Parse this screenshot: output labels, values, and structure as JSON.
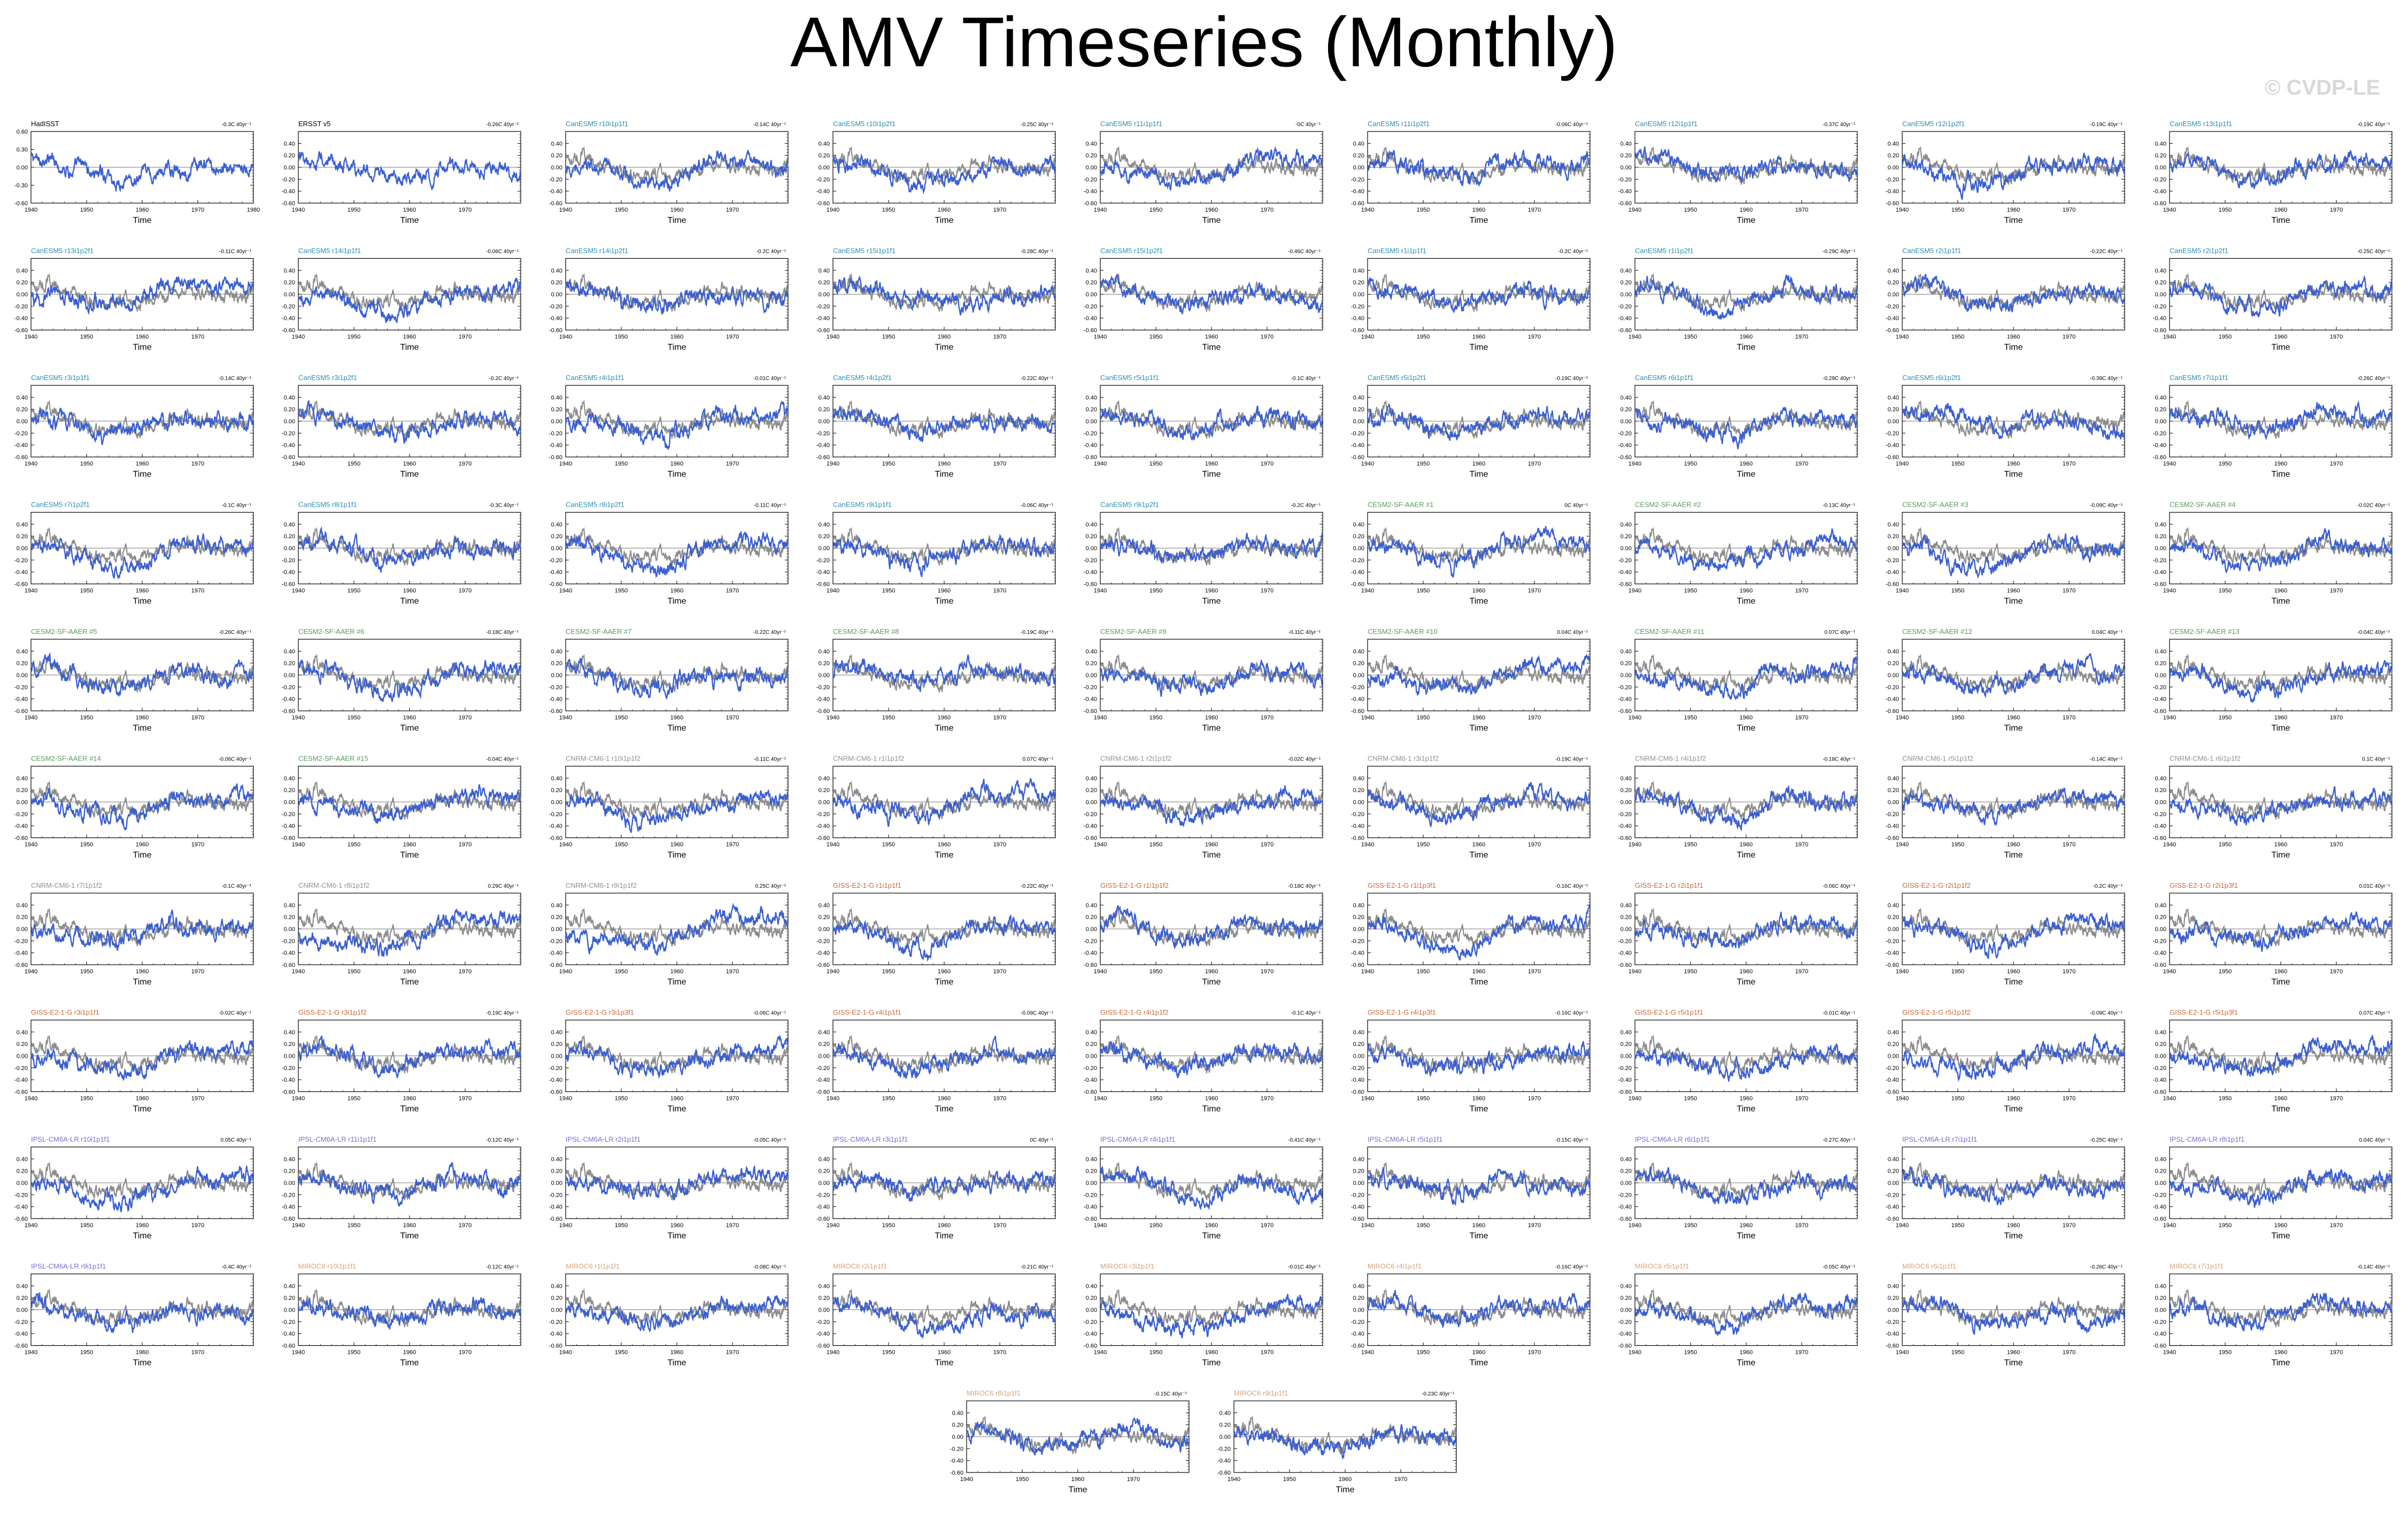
{
  "title": "AMV Timeseries (Monthly)",
  "watermark": "© CVDP-LE",
  "colors": {
    "observed": "#8c8c8c",
    "simulated": "#3a5fd1",
    "zero_line": "#7a7a7a"
  },
  "chart_data": {
    "type": "line",
    "panel_layout": {
      "columns": 9,
      "rows": 11
    },
    "xlabel": "Time",
    "x_range": [
      1940,
      1980
    ],
    "x_ticks": [
      "1940",
      "1950",
      "1960",
      "1970"
    ],
    "first_panel_x_ticks": [
      "1940",
      "1950",
      "1960",
      "1970",
      "1980"
    ],
    "ylim": [
      -0.6,
      0.6
    ],
    "y_ticks": [
      "0.40",
      "0.20",
      "0.00",
      "-0.20",
      "-0.40",
      "-0.60"
    ],
    "first_panel_y_ticks": [
      "0.60",
      "0.30",
      "0.00",
      "-0.30",
      "-0.60"
    ],
    "trend_unit": "40yr⁻¹",
    "panels": [
      {
        "title": "HadISST",
        "trend": "-0.3C",
        "group": "obs"
      },
      {
        "title": "ERSST v5",
        "trend": "-0.26C",
        "group": "obs"
      },
      {
        "title": "CanESM5 r10i1p1f1",
        "trend": "-0.14C",
        "group": "CanESM5"
      },
      {
        "title": "CanESM5 r10i1p2f1",
        "trend": "-0.25C",
        "group": "CanESM5"
      },
      {
        "title": "CanESM5 r11i1p1f1",
        "trend": "-0C",
        "group": "CanESM5"
      },
      {
        "title": "CanESM5 r11i1p2f1",
        "trend": "-0.06C",
        "group": "CanESM5"
      },
      {
        "title": "CanESM5 r12i1p1f1",
        "trend": "-0.37C",
        "group": "CanESM5"
      },
      {
        "title": "CanESM5 r12i1p2f1",
        "trend": "-0.19C",
        "group": "CanESM5"
      },
      {
        "title": "CanESM5 r13i1p1f1",
        "trend": "-0.19C",
        "group": "CanESM5"
      },
      {
        "title": "CanESM5 r13i1p2f1",
        "trend": "-0.11C",
        "group": "CanESM5"
      },
      {
        "title": "CanESM5 r14i1p1f1",
        "trend": "-0.06C",
        "group": "CanESM5"
      },
      {
        "title": "CanESM5 r14i1p2f1",
        "trend": "-0.2C",
        "group": "CanESM5"
      },
      {
        "title": "CanESM5 r15i1p1f1",
        "trend": "-0.28C",
        "group": "CanESM5"
      },
      {
        "title": "CanESM5 r15i1p2f1",
        "trend": "-0.46C",
        "group": "CanESM5"
      },
      {
        "title": "CanESM5 r1i1p1f1",
        "trend": "-0.2C",
        "group": "CanESM5"
      },
      {
        "title": "CanESM5 r1i1p2f1",
        "trend": "-0.29C",
        "group": "CanESM5"
      },
      {
        "title": "CanESM5 r2i1p1f1",
        "trend": "-0.22C",
        "group": "CanESM5"
      },
      {
        "title": "CanESM5 r2i1p2f1",
        "trend": "-0.25C",
        "group": "CanESM5"
      },
      {
        "title": "CanESM5 r3i1p1f1",
        "trend": "-0.14C",
        "group": "CanESM5"
      },
      {
        "title": "CanESM5 r3i1p2f1",
        "trend": "-0.2C",
        "group": "CanESM5"
      },
      {
        "title": "CanESM5 r4i1p1f1",
        "trend": "-0.01C",
        "group": "CanESM5"
      },
      {
        "title": "CanESM5 r4i1p2f1",
        "trend": "-0.22C",
        "group": "CanESM5"
      },
      {
        "title": "CanESM5 r5i1p1f1",
        "trend": "-0.1C",
        "group": "CanESM5"
      },
      {
        "title": "CanESM5 r5i1p2f1",
        "trend": "-0.19C",
        "group": "CanESM5"
      },
      {
        "title": "CanESM5 r6i1p1f1",
        "trend": "-0.29C",
        "group": "CanESM5"
      },
      {
        "title": "CanESM5 r6i1p2f1",
        "trend": "-0.39C",
        "group": "CanESM5"
      },
      {
        "title": "CanESM5 r7i1p1f1",
        "trend": "-0.26C",
        "group": "CanESM5"
      },
      {
        "title": "CanESM5 r7i1p2f1",
        "trend": "-0.1C",
        "group": "CanESM5"
      },
      {
        "title": "CanESM5 r8i1p1f1",
        "trend": "-0.3C",
        "group": "CanESM5"
      },
      {
        "title": "CanESM5 r8i1p2f1",
        "trend": "-0.11C",
        "group": "CanESM5"
      },
      {
        "title": "CanESM5 r9i1p1f1",
        "trend": "-0.06C",
        "group": "CanESM5"
      },
      {
        "title": "CanESM5 r9i1p2f1",
        "trend": "-0.2C",
        "group": "CanESM5"
      },
      {
        "title": "CESM2-SF-AAER #1",
        "trend": "0C",
        "group": "CESM2"
      },
      {
        "title": "CESM2-SF-AAER #2",
        "trend": "-0.13C",
        "group": "CESM2"
      },
      {
        "title": "CESM2-SF-AAER #3",
        "trend": "-0.09C",
        "group": "CESM2"
      },
      {
        "title": "CESM2-SF-AAER #4",
        "trend": "-0.02C",
        "group": "CESM2"
      },
      {
        "title": "CESM2-SF-AAER #5",
        "trend": "-0.26C",
        "group": "CESM2"
      },
      {
        "title": "CESM2-SF-AAER #6",
        "trend": "-0.18C",
        "group": "CESM2"
      },
      {
        "title": "CESM2-SF-AAER #7",
        "trend": "-0.22C",
        "group": "CESM2"
      },
      {
        "title": "CESM2-SF-AAER #8",
        "trend": "-0.19C",
        "group": "CESM2"
      },
      {
        "title": "CESM2-SF-AAER #9",
        "trend": "-0.11C",
        "group": "CESM2"
      },
      {
        "title": "CESM2-SF-AAER #10",
        "trend": "0.04C",
        "group": "CESM2"
      },
      {
        "title": "CESM2-SF-AAER #11",
        "trend": "0.07C",
        "group": "CESM2"
      },
      {
        "title": "CESM2-SF-AAER #12",
        "trend": "0.04C",
        "group": "CESM2"
      },
      {
        "title": "CESM2-SF-AAER #13",
        "trend": "-0.04C",
        "group": "CESM2"
      },
      {
        "title": "CESM2-SF-AAER #14",
        "trend": "-0.06C",
        "group": "CESM2"
      },
      {
        "title": "CESM2-SF-AAER #15",
        "trend": "-0.04C",
        "group": "CESM2"
      },
      {
        "title": "CNRM-CM6-1 r10i1p1f2",
        "trend": "-0.11C",
        "group": "CNRM"
      },
      {
        "title": "CNRM-CM6-1 r1i1p1f2",
        "trend": "0.07C",
        "group": "CNRM"
      },
      {
        "title": "CNRM-CM6-1 r2i1p1f2",
        "trend": "-0.02C",
        "group": "CNRM"
      },
      {
        "title": "CNRM-CM6-1 r3i1p1f2",
        "trend": "-0.19C",
        "group": "CNRM"
      },
      {
        "title": "CNRM-CM6-1 r4i1p1f2",
        "trend": "-0.18C",
        "group": "CNRM"
      },
      {
        "title": "CNRM-CM6-1 r5i1p1f2",
        "trend": "-0.14C",
        "group": "CNRM"
      },
      {
        "title": "CNRM-CM6-1 r6i1p1f2",
        "trend": "0.1C",
        "group": "CNRM"
      },
      {
        "title": "CNRM-CM6-1 r7i1p1f2",
        "trend": "-0.1C",
        "group": "CNRM"
      },
      {
        "title": "CNRM-CM6-1 r8i1p1f2",
        "trend": "0.29C",
        "group": "CNRM"
      },
      {
        "title": "CNRM-CM6-1 r9i1p1f2",
        "trend": "0.25C",
        "group": "CNRM"
      },
      {
        "title": "GISS-E2-1-G r1i1p1f1",
        "trend": "-0.22C",
        "group": "GISS"
      },
      {
        "title": "GISS-E2-1-G r1i1p1f2",
        "trend": "-0.18C",
        "group": "GISS"
      },
      {
        "title": "GISS-E2-1-G r1i1p3f1",
        "trend": "-0.16C",
        "group": "GISS"
      },
      {
        "title": "GISS-E2-1-G r2i1p1f1",
        "trend": "-0.06C",
        "group": "GISS"
      },
      {
        "title": "GISS-E2-1-G r2i1p1f2",
        "trend": "-0.2C",
        "group": "GISS"
      },
      {
        "title": "GISS-E2-1-G r2i1p3f1",
        "trend": "0.01C",
        "group": "GISS"
      },
      {
        "title": "GISS-E2-1-G r3i1p1f1",
        "trend": "-0.02C",
        "group": "GISS"
      },
      {
        "title": "GISS-E2-1-G r3i1p1f2",
        "trend": "-0.19C",
        "group": "GISS"
      },
      {
        "title": "GISS-E2-1-G r3i1p3f1",
        "trend": "-0.06C",
        "group": "GISS"
      },
      {
        "title": "GISS-E2-1-G r4i1p1f1",
        "trend": "-0.09C",
        "group": "GISS"
      },
      {
        "title": "GISS-E2-1-G r4i1p1f2",
        "trend": "-0.1C",
        "group": "GISS"
      },
      {
        "title": "GISS-E2-1-G r4i1p3f1",
        "trend": "-0.16C",
        "group": "GISS"
      },
      {
        "title": "GISS-E2-1-G r5i1p1f1",
        "trend": "-0.01C",
        "group": "GISS"
      },
      {
        "title": "GISS-E2-1-G r5i1p1f2",
        "trend": "-0.09C",
        "group": "GISS"
      },
      {
        "title": "GISS-E2-1-G r5i1p3f1",
        "trend": "0.07C",
        "group": "GISS"
      },
      {
        "title": "IPSL-CM6A-LR r10i1p1f1",
        "trend": "0.05C",
        "group": "IPSL"
      },
      {
        "title": "IPSL-CM6A-LR r11i1p1f1",
        "trend": "-0.12C",
        "group": "IPSL"
      },
      {
        "title": "IPSL-CM6A-LR r2i1p1f1",
        "trend": "-0.05C",
        "group": "IPSL"
      },
      {
        "title": "IPSL-CM6A-LR r3i1p1f1",
        "trend": "0C",
        "group": "IPSL"
      },
      {
        "title": "IPSL-CM6A-LR r4i1p1f1",
        "trend": "-0.41C",
        "group": "IPSL"
      },
      {
        "title": "IPSL-CM6A-LR r5i1p1f1",
        "trend": "-0.15C",
        "group": "IPSL"
      },
      {
        "title": "IPSL-CM6A-LR r6i1p1f1",
        "trend": "-0.27C",
        "group": "IPSL"
      },
      {
        "title": "IPSL-CM6A-LR r7i1p1f1",
        "trend": "-0.25C",
        "group": "IPSL"
      },
      {
        "title": "IPSL-CM6A-LR r8i1p1f1",
        "trend": "0.04C",
        "group": "IPSL"
      },
      {
        "title": "IPSL-CM6A-LR r9i1p1f1",
        "trend": "-0.4C",
        "group": "IPSL"
      },
      {
        "title": "MIROC6 r10i1p1f1",
        "trend": "-0.12C",
        "group": "MIROC6"
      },
      {
        "title": "MIROC6 r1i1p1f1",
        "trend": "-0.08C",
        "group": "MIROC6"
      },
      {
        "title": "MIROC6 r2i1p1f1",
        "trend": "-0.21C",
        "group": "MIROC6"
      },
      {
        "title": "MIROC6 r3i1p1f1",
        "trend": "-0.01C",
        "group": "MIROC6"
      },
      {
        "title": "MIROC6 r4i1p1f1",
        "trend": "-0.16C",
        "group": "MIROC6"
      },
      {
        "title": "MIROC6 r5i1p1f1",
        "trend": "-0.05C",
        "group": "MIROC6"
      },
      {
        "title": "MIROC6 r6i1p1f1",
        "trend": "-0.26C",
        "group": "MIROC6"
      },
      {
        "title": "MIROC6 r7i1p1f1",
        "trend": "-0.14C",
        "group": "MIROC6"
      },
      {
        "title": "MIROC6 r8i1p1f1",
        "trend": "-0.15C",
        "group": "MIROC6"
      },
      {
        "title": "MIROC6 r9i1p1f1",
        "trend": "-0.23C",
        "group": "MIROC6"
      }
    ],
    "group_title_colors": {
      "obs": "#000000",
      "CanESM5": "#2a8fb0",
      "CESM2": "#5a9a5a",
      "CNRM": "#909090",
      "GISS": "#c8683a",
      "IPSL": "#7b6cd0",
      "MIROC6": "#d4a37a"
    }
  }
}
